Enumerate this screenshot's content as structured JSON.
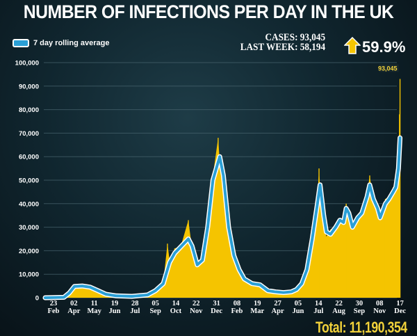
{
  "title": "NUMBER OF INFECTIONS PER DAY IN THE UK",
  "legend_label": "7 day rolling average",
  "stats": {
    "cases": "CASES: 93,045",
    "last_week": "LAST WEEK: 58,194",
    "change": "59.9%",
    "change_icon": "arrow-up-icon"
  },
  "total": "Total: 11,190,354",
  "colors": {
    "bars": "#f5c400",
    "average": "#2a9fd6",
    "average_outline": "#ffffff",
    "accent": "#f2d23a"
  },
  "chart_data": {
    "type": "bar",
    "title": "NUMBER OF INFECTIONS PER DAY IN THE UK",
    "xlabel": "",
    "ylabel": "",
    "x_unit": "days since 23 Feb 2020",
    "ylim": [
      0,
      100000
    ],
    "yticks": [
      "0",
      "10,000",
      "20,000",
      "30,000",
      "40,000",
      "50,000",
      "60,000",
      "70,000",
      "80,000",
      "90,000",
      "100,000"
    ],
    "xticks": [
      {
        "day": 0,
        "d": "23",
        "m": "Feb"
      },
      {
        "day": 39,
        "d": "02",
        "m": "Apr"
      },
      {
        "day": 78,
        "d": "11",
        "m": "May"
      },
      {
        "day": 117,
        "d": "19",
        "m": "Jun"
      },
      {
        "day": 156,
        "d": "28",
        "m": "Jul"
      },
      {
        "day": 195,
        "d": "05",
        "m": "Sep"
      },
      {
        "day": 234,
        "d": "14",
        "m": "Oct"
      },
      {
        "day": 273,
        "d": "22",
        "m": "Nov"
      },
      {
        "day": 312,
        "d": "31",
        "m": "Dec"
      },
      {
        "day": 351,
        "d": "08",
        "m": "Feb"
      },
      {
        "day": 390,
        "d": "19",
        "m": "Mar"
      },
      {
        "day": 429,
        "d": "27",
        "m": "Apr"
      },
      {
        "day": 468,
        "d": "05",
        "m": "Jun"
      },
      {
        "day": 507,
        "d": "14",
        "m": "Jul"
      },
      {
        "day": 546,
        "d": "22",
        "m": "Aug"
      },
      {
        "day": 585,
        "d": "30",
        "m": "Sep"
      },
      {
        "day": 624,
        "d": "08",
        "m": "Nov"
      },
      {
        "day": 663,
        "d": "17",
        "m": "Dec"
      }
    ],
    "grid": true,
    "legend": "top-left",
    "annotation": {
      "day": 663,
      "value": 93045,
      "label": "93,045"
    },
    "series": [
      {
        "name": "Daily cases",
        "x": [
          -16,
          20,
          30,
          40,
          55,
          70,
          85,
          100,
          120,
          150,
          180,
          195,
          210,
          218,
          222,
          232,
          240,
          245,
          258,
          265,
          275,
          285,
          295,
          305,
          315,
          318,
          325,
          335,
          345,
          355,
          365,
          380,
          395,
          410,
          425,
          440,
          455,
          465,
          475,
          485,
          495,
          505,
          508,
          510,
          517,
          522,
          530,
          540,
          548,
          555,
          560,
          565,
          572,
          582,
          590,
          600,
          605,
          612,
          620,
          625,
          635,
          642,
          650,
          655,
          660,
          662,
          663
        ],
        "y": [
          0,
          300,
          2500,
          5500,
          5200,
          4600,
          3200,
          1500,
          900,
          700,
          1300,
          3100,
          6500,
          23000,
          16000,
          21000,
          21500,
          23000,
          33000,
          21000,
          13000,
          17000,
          32000,
          52000,
          68000,
          58000,
          50000,
          28000,
          17000,
          11500,
          7500,
          5800,
          5300,
          2900,
          2500,
          2100,
          2600,
          3800,
          6200,
          13000,
          27000,
          42000,
          55000,
          46000,
          34000,
          26000,
          29000,
          31000,
          34000,
          33000,
          40000,
          35000,
          30000,
          35000,
          38000,
          44000,
          52000,
          41000,
          38000,
          33000,
          42000,
          43000,
          47000,
          50000,
          54000,
          78000,
          93045
        ]
      },
      {
        "name": "7 day rolling average",
        "x": [
          -16,
          20,
          30,
          40,
          55,
          70,
          85,
          100,
          120,
          150,
          180,
          195,
          210,
          222,
          232,
          245,
          258,
          265,
          275,
          285,
          295,
          305,
          318,
          325,
          335,
          345,
          355,
          365,
          380,
          395,
          410,
          425,
          440,
          455,
          465,
          475,
          485,
          495,
          505,
          510,
          517,
          522,
          530,
          540,
          548,
          555,
          560,
          565,
          572,
          582,
          590,
          600,
          605,
          612,
          620,
          625,
          635,
          642,
          650,
          655,
          660,
          663
        ],
        "y": [
          0,
          200,
          2000,
          4800,
          5000,
          4500,
          3000,
          1500,
          800,
          600,
          1200,
          3000,
          6000,
          15000,
          19000,
          22000,
          25000,
          22000,
          14000,
          16000,
          30000,
          50000,
          60000,
          52000,
          30000,
          18000,
          12000,
          8000,
          6000,
          5500,
          3000,
          2500,
          2200,
          2500,
          3500,
          6000,
          12000,
          25000,
          40000,
          48000,
          35000,
          28000,
          27000,
          30000,
          33000,
          32000,
          38000,
          36000,
          30000,
          34000,
          36000,
          43000,
          48000,
          42000,
          38000,
          34000,
          40000,
          42000,
          45000,
          47000,
          55000,
          68000
        ]
      }
    ]
  }
}
